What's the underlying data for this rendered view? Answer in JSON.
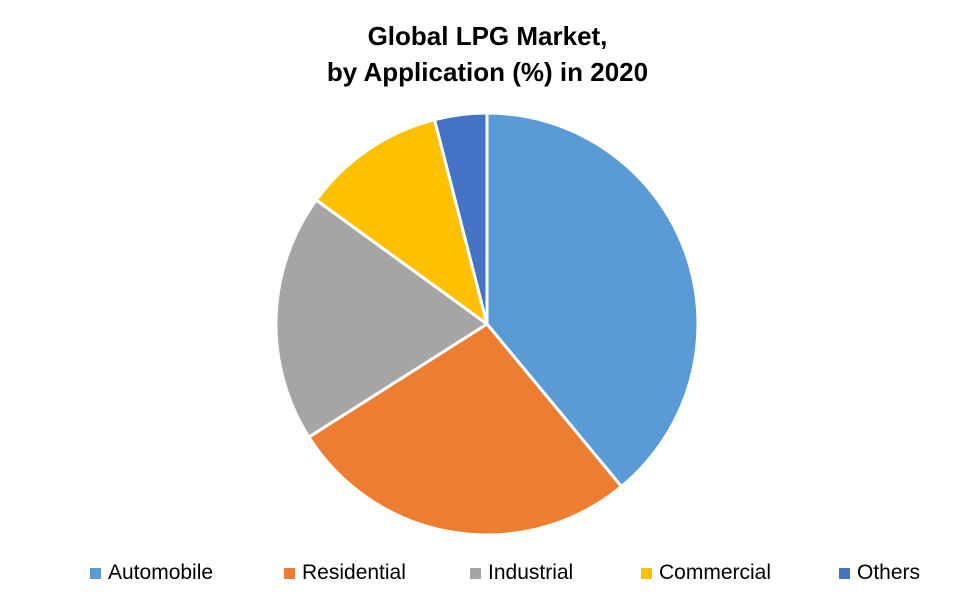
{
  "chart_data": {
    "type": "pie",
    "title": [
      "Global LPG Market,",
      "by Application (%) in 2020"
    ],
    "categories": [
      "Automobile",
      "Residential",
      "Industrial",
      "Commercial",
      "Others"
    ],
    "values": [
      39,
      27,
      19,
      11,
      4
    ],
    "unit": "%",
    "colors": [
      "#5B9BD5",
      "#ED7D31",
      "#A5A5A5",
      "#FFC000",
      "#4472C4"
    ],
    "legend_position": "bottom",
    "start_angle": "12 o'clock",
    "direction": "clockwise"
  }
}
